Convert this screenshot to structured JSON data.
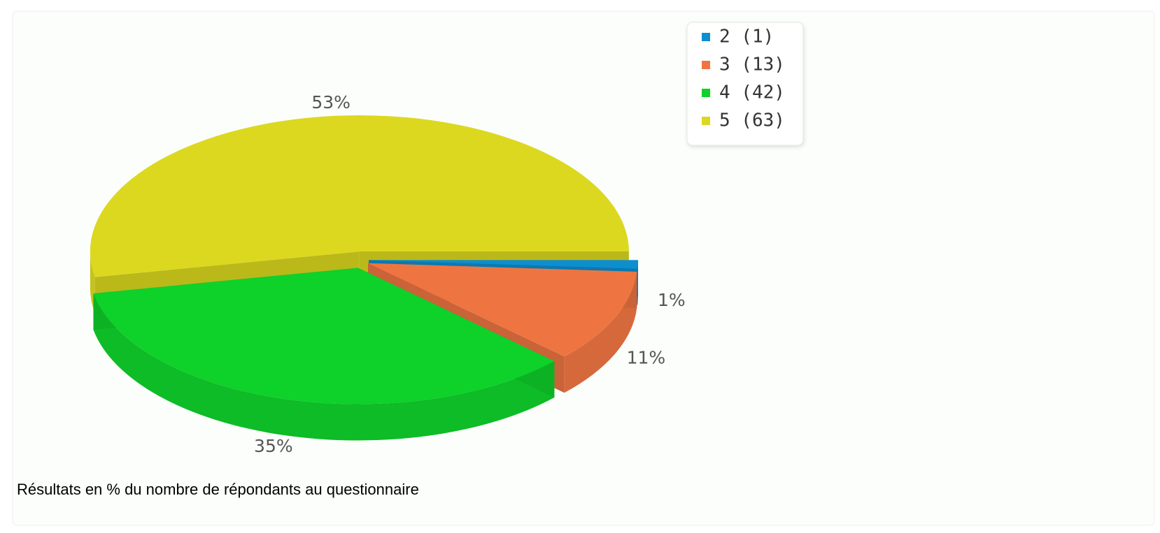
{
  "chart_data": {
    "type": "pie",
    "categories": [
      "2 (1)",
      "3 (13)",
      "4 (42)",
      "5 (63)"
    ],
    "values": [
      1,
      11,
      35,
      53
    ],
    "value_labels": [
      "1%",
      "11%",
      "35%",
      "53%"
    ],
    "colors": [
      "#0d8ecf",
      "#ee7541",
      "#0ed12a",
      "#dcd81f"
    ],
    "legend": "top-right",
    "caption": "Résultats en % du nombre de répondants au questionnaire"
  }
}
